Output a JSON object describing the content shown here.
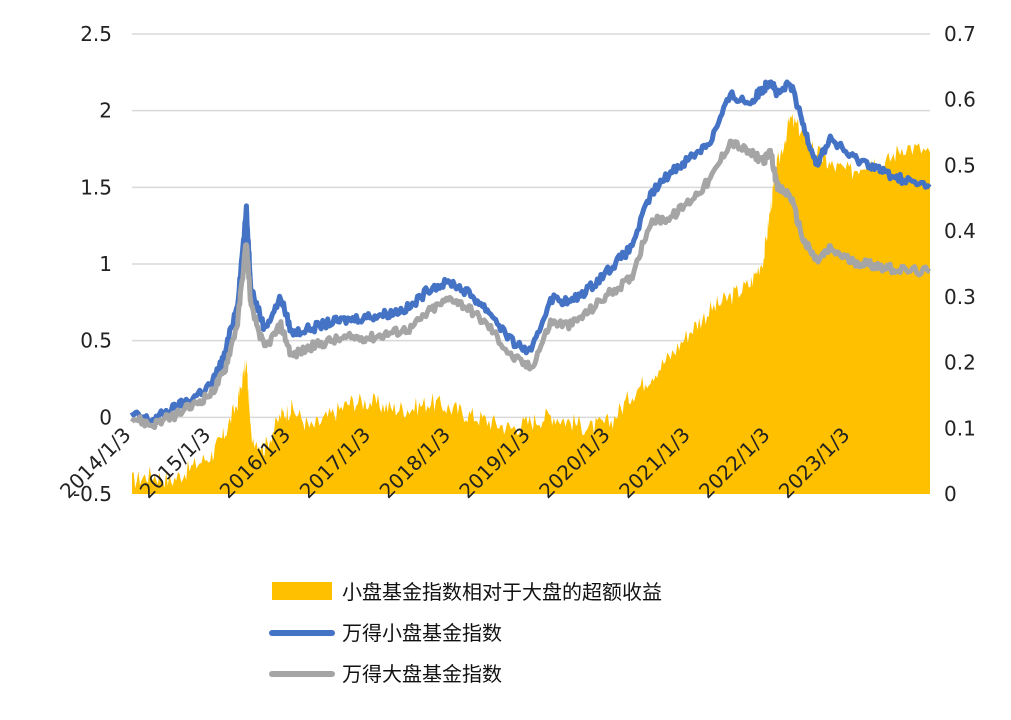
{
  "chart_data": {
    "type": "area+line",
    "title": "",
    "xlabel": "",
    "ylabel_left": "",
    "ylabel_right": "",
    "left_ylim": [
      -0.5,
      2.5
    ],
    "left_yticks": [
      "2.5",
      "2",
      "1.5",
      "1",
      "0.5",
      "0",
      "-0.5"
    ],
    "right_ylim": [
      0,
      0.7
    ],
    "right_yticks": [
      "0.7",
      "0.6",
      "0.5",
      "0.4",
      "0.3",
      "0.2",
      "0.1",
      "0"
    ],
    "x_tick_labels": [
      "2014/1/3",
      "2015/1/3",
      "2016/1/3",
      "2017/1/3",
      "2018/1/3",
      "2019/1/3",
      "2020/1/3",
      "2021/1/3",
      "2022/1/3",
      "2023/1/3"
    ],
    "x_range": [
      "2014-01-03",
      "2023-12-31"
    ],
    "grid": "horizontal",
    "legend_position": "bottom",
    "colors": {
      "excess": "#ffc000",
      "small_cap": "#4472c4",
      "large_cap": "#a5a5a5"
    },
    "series": [
      {
        "name": "小盘基金指数相对于大盘的超额收益",
        "kind": "area",
        "axis": "right",
        "color": "#ffc000",
        "x": [
          "2014-01-03",
          "2014-04-01",
          "2014-07-01",
          "2014-10-01",
          "2015-01-03",
          "2015-03-01",
          "2015-05-01",
          "2015-06-10",
          "2015-07-01",
          "2015-09-01",
          "2015-11-15",
          "2016-01-03",
          "2016-04-01",
          "2016-07-01",
          "2016-10-01",
          "2017-01-03",
          "2017-04-01",
          "2017-07-01",
          "2017-10-01",
          "2018-01-03",
          "2018-04-01",
          "2018-07-01",
          "2018-10-01",
          "2019-01-03",
          "2019-04-01",
          "2019-07-01",
          "2019-10-01",
          "2020-01-03",
          "2020-04-01",
          "2020-07-01",
          "2020-10-01",
          "2021-01-03",
          "2021-04-01",
          "2021-07-01",
          "2021-10-01",
          "2021-12-01",
          "2022-01-03",
          "2022-02-01",
          "2022-04-01",
          "2022-06-01",
          "2022-08-01",
          "2022-10-01",
          "2023-01-03",
          "2023-04-01",
          "2023-06-01",
          "2023-09-01",
          "2023-12-31"
        ],
        "values": [
          0.02,
          0.03,
          0.02,
          0.04,
          0.06,
          0.09,
          0.14,
          0.2,
          0.09,
          0.07,
          0.12,
          0.13,
          0.1,
          0.12,
          0.14,
          0.14,
          0.13,
          0.13,
          0.14,
          0.13,
          0.12,
          0.11,
          0.1,
          0.11,
          0.12,
          0.11,
          0.1,
          0.11,
          0.15,
          0.18,
          0.21,
          0.25,
          0.28,
          0.3,
          0.32,
          0.36,
          0.44,
          0.5,
          0.57,
          0.55,
          0.52,
          0.5,
          0.49,
          0.51,
          0.5,
          0.53,
          0.52
        ]
      },
      {
        "name": "万得小盘基金指数",
        "kind": "line",
        "axis": "left",
        "color": "#4472c4",
        "x": [
          "2014-01-03",
          "2014-04-01",
          "2014-07-01",
          "2014-10-01",
          "2015-01-03",
          "2015-03-01",
          "2015-05-01",
          "2015-06-10",
          "2015-07-01",
          "2015-09-01",
          "2015-11-15",
          "2016-01-03",
          "2016-04-01",
          "2016-07-01",
          "2016-10-01",
          "2017-01-03",
          "2017-04-01",
          "2017-07-01",
          "2017-10-01",
          "2018-01-03",
          "2018-04-01",
          "2018-07-01",
          "2018-10-01",
          "2019-01-03",
          "2019-04-01",
          "2019-07-01",
          "2019-10-01",
          "2020-01-03",
          "2020-04-01",
          "2020-07-01",
          "2020-10-01",
          "2021-01-03",
          "2021-04-01",
          "2021-07-01",
          "2021-10-01",
          "2021-12-01",
          "2022-01-03",
          "2022-02-01",
          "2022-04-01",
          "2022-06-01",
          "2022-08-01",
          "2022-10-01",
          "2023-01-03",
          "2023-04-01",
          "2023-06-01",
          "2023-09-01",
          "2023-12-31"
        ],
        "values": [
          0.02,
          -0.02,
          0.05,
          0.12,
          0.22,
          0.4,
          0.75,
          1.35,
          0.85,
          0.58,
          0.78,
          0.55,
          0.58,
          0.62,
          0.64,
          0.66,
          0.68,
          0.72,
          0.85,
          0.88,
          0.8,
          0.68,
          0.5,
          0.42,
          0.78,
          0.75,
          0.85,
          0.98,
          1.1,
          1.45,
          1.6,
          1.7,
          1.8,
          2.1,
          2.05,
          2.15,
          2.2,
          2.1,
          2.18,
          1.9,
          1.65,
          1.82,
          1.7,
          1.65,
          1.6,
          1.55,
          1.5
        ]
      },
      {
        "name": "万得大盘基金指数",
        "kind": "line",
        "axis": "left",
        "color": "#a5a5a5",
        "x": [
          "2014-01-03",
          "2014-04-01",
          "2014-07-01",
          "2014-10-01",
          "2015-01-03",
          "2015-03-01",
          "2015-05-01",
          "2015-06-10",
          "2015-07-01",
          "2015-09-01",
          "2015-11-15",
          "2016-01-03",
          "2016-04-01",
          "2016-07-01",
          "2016-10-01",
          "2017-01-03",
          "2017-04-01",
          "2017-07-01",
          "2017-10-01",
          "2018-01-03",
          "2018-04-01",
          "2018-07-01",
          "2018-10-01",
          "2019-01-03",
          "2019-04-01",
          "2019-07-01",
          "2019-10-01",
          "2020-01-03",
          "2020-04-01",
          "2020-07-01",
          "2020-10-01",
          "2021-01-03",
          "2021-04-01",
          "2021-07-01",
          "2021-10-01",
          "2021-12-01",
          "2022-01-03",
          "2022-02-01",
          "2022-04-01",
          "2022-06-01",
          "2022-08-01",
          "2022-10-01",
          "2023-01-03",
          "2023-04-01",
          "2023-06-01",
          "2023-09-01",
          "2023-12-31"
        ],
        "values": [
          0.0,
          -0.05,
          0.0,
          0.07,
          0.16,
          0.3,
          0.62,
          1.15,
          0.72,
          0.45,
          0.6,
          0.4,
          0.46,
          0.5,
          0.52,
          0.52,
          0.55,
          0.58,
          0.7,
          0.78,
          0.7,
          0.58,
          0.4,
          0.32,
          0.62,
          0.6,
          0.7,
          0.82,
          0.9,
          1.28,
          1.3,
          1.42,
          1.55,
          1.8,
          1.72,
          1.68,
          1.72,
          1.5,
          1.45,
          1.15,
          1.02,
          1.1,
          1.02,
          1.0,
          0.98,
          0.96,
          0.95
        ]
      }
    ]
  }
}
